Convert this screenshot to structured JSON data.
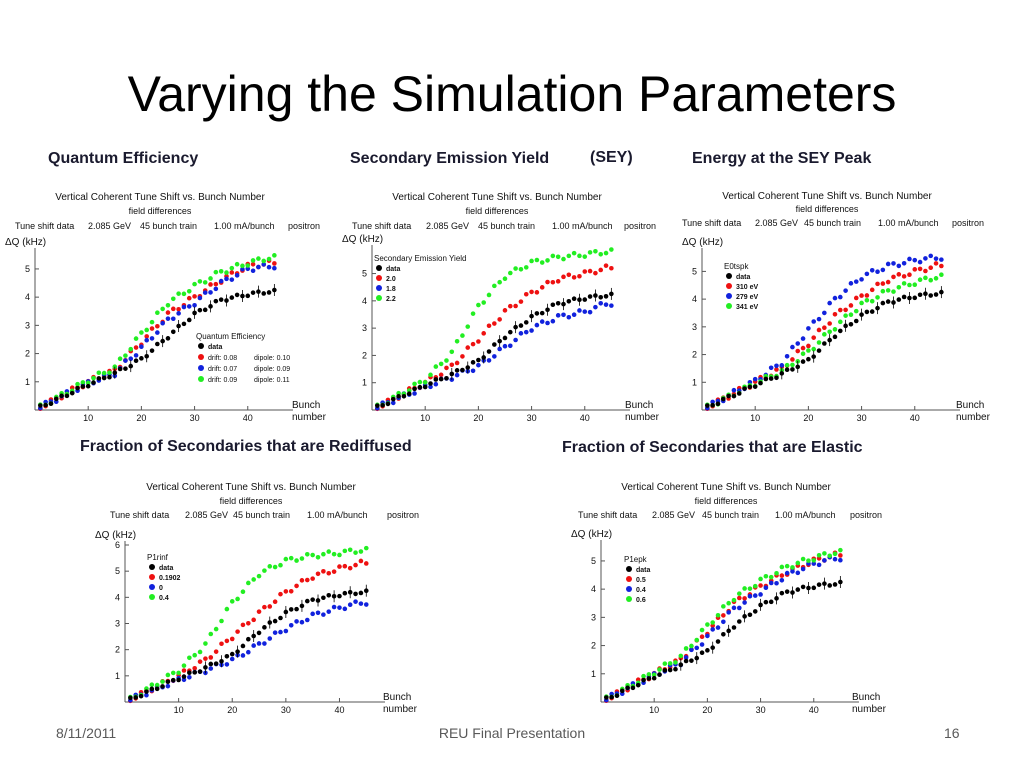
{
  "slide": {
    "title": "Varying the Simulation Parameters",
    "footer_date": "8/11/2011",
    "footer_center": "REU Final Presentation",
    "page_number": "16"
  },
  "common": {
    "chart_title": "Vertical Coherent Tune Shift vs. Bunch Number",
    "chart_subtitle": "field differences",
    "info": [
      "Tune shift data",
      "2.085 GeV",
      "45 bunch train",
      "1.00 mA/bunch",
      "positron"
    ],
    "ylabel": "ΔQ (kHz)",
    "xlabel_1": "Bunch",
    "xlabel_2": "number"
  },
  "panels": [
    {
      "heading": "Quantum Efficiency",
      "heading2": ""
    },
    {
      "heading": "Secondary Emission Yield",
      "heading2": "(SEY)"
    },
    {
      "heading": "Energy at the SEY Peak",
      "heading2": ""
    },
    {
      "heading": "Fraction of Secondaries that are Rediffused",
      "heading2": ""
    },
    {
      "heading": "Fraction of Secondaries that are Elastic",
      "heading2": ""
    }
  ],
  "colors": {
    "data": "#000000",
    "red": "#ee1111",
    "blue": "#1122dd",
    "green": "#22ee22"
  },
  "chart_data": [
    {
      "type": "scatter",
      "title": "Vertical Coherent Tune Shift vs. Bunch Number",
      "xlabel": "Bunch number",
      "ylabel": "ΔQ (kHz)",
      "xlim": [
        0,
        47
      ],
      "ylim": [
        0,
        5.6
      ],
      "xticks": [
        10,
        20,
        30,
        40
      ],
      "yticks": [
        1,
        2,
        3,
        4,
        5
      ],
      "legend_position": "bottom-right",
      "legend_title": "Quantum Efficiency",
      "series": [
        {
          "name": "data",
          "curve": [
            [
              1,
              0.1
            ],
            [
              10,
              0.9
            ],
            [
              15,
              1.3
            ],
            [
              20,
              1.8
            ],
            [
              25,
              2.6
            ],
            [
              30,
              3.4
            ],
            [
              35,
              3.9
            ],
            [
              40,
              4.1
            ],
            [
              44,
              4.2
            ]
          ]
        },
        {
          "name": "drift: 0.08 dipole: 0.10",
          "curve": [
            [
              1,
              0.1
            ],
            [
              10,
              1.0
            ],
            [
              15,
              1.4
            ],
            [
              20,
              2.4
            ],
            [
              25,
              3.4
            ],
            [
              30,
              4.0
            ],
            [
              35,
              4.6
            ],
            [
              40,
              5.1
            ],
            [
              44,
              5.2
            ]
          ]
        },
        {
          "name": "drift: 0.07 dipole: 0.09",
          "curve": [
            [
              1,
              0.1
            ],
            [
              10,
              0.95
            ],
            [
              15,
              1.3
            ],
            [
              20,
              2.2
            ],
            [
              25,
              3.2
            ],
            [
              30,
              3.8
            ],
            [
              35,
              4.5
            ],
            [
              40,
              5.0
            ],
            [
              44,
              5.1
            ]
          ]
        },
        {
          "name": "drift: 0.09 dipole: 0.11",
          "curve": [
            [
              1,
              0.1
            ],
            [
              10,
              1.05
            ],
            [
              15,
              1.5
            ],
            [
              20,
              2.7
            ],
            [
              25,
              3.8
            ],
            [
              30,
              4.4
            ],
            [
              35,
              4.9
            ],
            [
              40,
              5.2
            ],
            [
              44,
              5.4
            ]
          ]
        }
      ]
    },
    {
      "type": "scatter",
      "title": "Vertical Coherent Tune Shift vs. Bunch Number",
      "xlabel": "Bunch number",
      "ylabel": "ΔQ (kHz)",
      "xlim": [
        0,
        47
      ],
      "ylim": [
        0,
        5.9
      ],
      "xticks": [
        10,
        20,
        30,
        40
      ],
      "yticks": [
        1,
        2,
        3,
        4,
        5
      ],
      "legend_position": "top-left",
      "legend_title": "Secondary Emission Yield",
      "series": [
        {
          "name": "data",
          "curve": [
            [
              1,
              0.1
            ],
            [
              10,
              0.9
            ],
            [
              15,
              1.3
            ],
            [
              20,
              1.8
            ],
            [
              25,
              2.7
            ],
            [
              30,
              3.4
            ],
            [
              35,
              3.9
            ],
            [
              40,
              4.1
            ],
            [
              44,
              4.2
            ]
          ]
        },
        {
          "name": "2.0",
          "curve": [
            [
              1,
              0.1
            ],
            [
              10,
              1.0
            ],
            [
              15,
              1.6
            ],
            [
              20,
              2.6
            ],
            [
              25,
              3.6
            ],
            [
              30,
              4.3
            ],
            [
              35,
              4.8
            ],
            [
              40,
              5.0
            ],
            [
              44,
              5.2
            ]
          ]
        },
        {
          "name": "1.8",
          "curve": [
            [
              1,
              0.1
            ],
            [
              10,
              0.85
            ],
            [
              15,
              1.2
            ],
            [
              20,
              1.6
            ],
            [
              25,
              2.3
            ],
            [
              30,
              3.0
            ],
            [
              35,
              3.4
            ],
            [
              40,
              3.6
            ],
            [
              44,
              3.9
            ]
          ]
        },
        {
          "name": "2.2",
          "curve": [
            [
              1,
              0.1
            ],
            [
              10,
              1.1
            ],
            [
              15,
              2.1
            ],
            [
              20,
              3.8
            ],
            [
              25,
              4.9
            ],
            [
              30,
              5.4
            ],
            [
              35,
              5.6
            ],
            [
              40,
              5.7
            ],
            [
              44,
              5.8
            ]
          ]
        }
      ]
    },
    {
      "type": "scatter",
      "title": "Vertical Coherent Tune Shift vs. Bunch Number",
      "xlabel": "Bunch number",
      "ylabel": "ΔQ (kHz)",
      "xlim": [
        0,
        47
      ],
      "ylim": [
        0,
        5.7
      ],
      "xticks": [
        10,
        20,
        30,
        40
      ],
      "yticks": [
        1,
        2,
        3,
        4,
        5
      ],
      "legend_position": "top-left",
      "legend_title": "E0tspk",
      "series": [
        {
          "name": "data",
          "curve": [
            [
              1,
              0.1
            ],
            [
              10,
              0.9
            ],
            [
              15,
              1.3
            ],
            [
              20,
              1.8
            ],
            [
              25,
              2.7
            ],
            [
              30,
              3.4
            ],
            [
              35,
              3.9
            ],
            [
              40,
              4.1
            ],
            [
              44,
              4.2
            ]
          ]
        },
        {
          "name": "310 eV",
          "curve": [
            [
              1,
              0.1
            ],
            [
              10,
              1.0
            ],
            [
              15,
              1.5
            ],
            [
              20,
              2.4
            ],
            [
              25,
              3.4
            ],
            [
              30,
              4.1
            ],
            [
              35,
              4.7
            ],
            [
              40,
              5.0
            ],
            [
              44,
              5.2
            ]
          ]
        },
        {
          "name": "279 eV",
          "curve": [
            [
              1,
              0.1
            ],
            [
              10,
              1.05
            ],
            [
              15,
              1.7
            ],
            [
              20,
              2.9
            ],
            [
              25,
              4.0
            ],
            [
              30,
              4.8
            ],
            [
              35,
              5.2
            ],
            [
              40,
              5.4
            ],
            [
              44,
              5.5
            ]
          ]
        },
        {
          "name": "341 eV",
          "curve": [
            [
              1,
              0.1
            ],
            [
              10,
              0.95
            ],
            [
              15,
              1.4
            ],
            [
              20,
              2.1
            ],
            [
              25,
              3.0
            ],
            [
              30,
              3.8
            ],
            [
              35,
              4.3
            ],
            [
              40,
              4.6
            ],
            [
              44,
              4.8
            ]
          ]
        }
      ]
    },
    {
      "type": "scatter",
      "title": "Vertical Coherent Tune Shift vs. Bunch Number",
      "xlabel": "Bunch number",
      "ylabel": "ΔQ (kHz)",
      "xlim": [
        0,
        47
      ],
      "ylim": [
        0,
        6
      ],
      "xticks": [
        10,
        20,
        30,
        40
      ],
      "yticks": [
        1,
        2,
        3,
        4,
        5,
        6
      ],
      "legend_position": "top-left",
      "legend_title": "P1rinf",
      "series": [
        {
          "name": "data",
          "curve": [
            [
              1,
              0.1
            ],
            [
              10,
              0.9
            ],
            [
              15,
              1.3
            ],
            [
              20,
              1.8
            ],
            [
              25,
              2.7
            ],
            [
              30,
              3.4
            ],
            [
              35,
              3.9
            ],
            [
              40,
              4.1
            ],
            [
              44,
              4.2
            ]
          ]
        },
        {
          "name": "0.1902",
          "curve": [
            [
              1,
              0.1
            ],
            [
              10,
              1.0
            ],
            [
              15,
              1.6
            ],
            [
              20,
              2.5
            ],
            [
              25,
              3.4
            ],
            [
              30,
              4.2
            ],
            [
              35,
              4.8
            ],
            [
              40,
              5.1
            ],
            [
              44,
              5.3
            ]
          ]
        },
        {
          "name": "0",
          "curve": [
            [
              1,
              0.1
            ],
            [
              10,
              0.85
            ],
            [
              15,
              1.2
            ],
            [
              20,
              1.6
            ],
            [
              25,
              2.2
            ],
            [
              30,
              2.8
            ],
            [
              35,
              3.3
            ],
            [
              40,
              3.6
            ],
            [
              44,
              3.8
            ]
          ]
        },
        {
          "name": "0.4",
          "curve": [
            [
              1,
              0.1
            ],
            [
              10,
              1.2
            ],
            [
              15,
              2.2
            ],
            [
              20,
              3.8
            ],
            [
              25,
              4.9
            ],
            [
              30,
              5.4
            ],
            [
              35,
              5.6
            ],
            [
              40,
              5.7
            ],
            [
              44,
              5.8
            ]
          ]
        }
      ]
    },
    {
      "type": "scatter",
      "title": "Vertical Coherent Tune Shift vs. Bunch Number",
      "xlabel": "Bunch number",
      "ylabel": "ΔQ (kHz)",
      "xlim": [
        0,
        47
      ],
      "ylim": [
        0,
        5.6
      ],
      "xticks": [
        10,
        20,
        30,
        40
      ],
      "yticks": [
        1,
        2,
        3,
        4,
        5
      ],
      "legend_position": "top-left",
      "legend_title": "P1epk",
      "series": [
        {
          "name": "data",
          "curve": [
            [
              1,
              0.1
            ],
            [
              10,
              0.9
            ],
            [
              15,
              1.3
            ],
            [
              20,
              1.8
            ],
            [
              25,
              2.7
            ],
            [
              30,
              3.4
            ],
            [
              35,
              3.9
            ],
            [
              40,
              4.1
            ],
            [
              44,
              4.2
            ]
          ]
        },
        {
          "name": "0.5",
          "curve": [
            [
              1,
              0.1
            ],
            [
              10,
              1.0
            ],
            [
              15,
              1.5
            ],
            [
              20,
              2.5
            ],
            [
              25,
              3.5
            ],
            [
              30,
              4.1
            ],
            [
              35,
              4.6
            ],
            [
              40,
              5.0
            ],
            [
              44,
              5.2
            ]
          ]
        },
        {
          "name": "0.4",
          "curve": [
            [
              1,
              0.1
            ],
            [
              10,
              0.95
            ],
            [
              15,
              1.4
            ],
            [
              20,
              2.3
            ],
            [
              25,
              3.3
            ],
            [
              30,
              3.9
            ],
            [
              35,
              4.5
            ],
            [
              40,
              4.9
            ],
            [
              44,
              5.1
            ]
          ]
        },
        {
          "name": "0.6",
          "curve": [
            [
              1,
              0.1
            ],
            [
              10,
              1.05
            ],
            [
              15,
              1.6
            ],
            [
              20,
              2.7
            ],
            [
              25,
              3.7
            ],
            [
              30,
              4.3
            ],
            [
              35,
              4.8
            ],
            [
              40,
              5.1
            ],
            [
              44,
              5.3
            ]
          ]
        }
      ]
    }
  ]
}
